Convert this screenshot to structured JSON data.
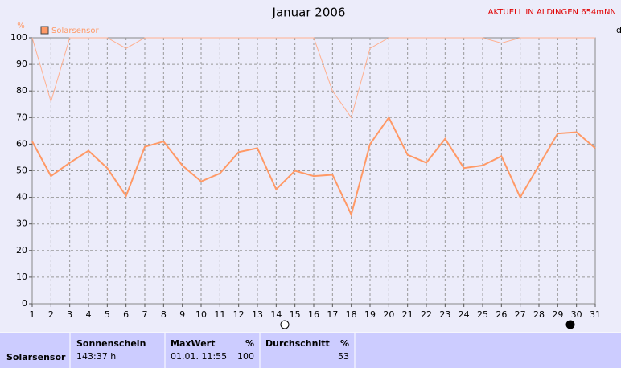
{
  "chart_data": {
    "type": "line",
    "title": "Januar 2006",
    "annotation": "AKTUELL IN ALDINGEN 654mNN",
    "ylabel": "%",
    "y2label": "d",
    "x": [
      1,
      2,
      3,
      4,
      5,
      6,
      7,
      8,
      9,
      10,
      11,
      12,
      13,
      14,
      15,
      16,
      17,
      18,
      19,
      20,
      21,
      22,
      23,
      24,
      25,
      26,
      27,
      28,
      29,
      30,
      31
    ],
    "xlim": [
      1,
      31
    ],
    "xticks": [
      1,
      2,
      3,
      4,
      5,
      6,
      7,
      8,
      9,
      10,
      11,
      12,
      13,
      14,
      15,
      16,
      17,
      18,
      19,
      20,
      21,
      22,
      23,
      24,
      25,
      26,
      27,
      28,
      29,
      30,
      31
    ],
    "ylim": [
      0,
      100
    ],
    "yticks": [
      0,
      10,
      20,
      30,
      40,
      50,
      60,
      70,
      80,
      90,
      100
    ],
    "grid": true,
    "series": [
      {
        "color": "#ffb090",
        "width": 1,
        "values": [
          100,
          76,
          100,
          100,
          100,
          96,
          100,
          100,
          100,
          100,
          100,
          100,
          100,
          100,
          100,
          100,
          80,
          70,
          96,
          100,
          100,
          100,
          100,
          100,
          100,
          98,
          100,
          100,
          100,
          100,
          100
        ]
      },
      {
        "name": "Solarsensor",
        "color": "#ff9966",
        "width": 2,
        "values": [
          61,
          48,
          53,
          57.5,
          51,
          40.5,
          59,
          61,
          52,
          46,
          49,
          57,
          58.5,
          43,
          50,
          48,
          48.5,
          33.5,
          60,
          70,
          56,
          53,
          62,
          51,
          52,
          55.5,
          40,
          52,
          64,
          64.5,
          58.5
        ]
      }
    ]
  },
  "summary_table": {
    "row_label": "Solarsensor",
    "cells": [
      {
        "header": "Sonnenschein",
        "value": "143:37 h"
      },
      {
        "header": "MaxWert",
        "unit": "%",
        "date": "01.01. 11:55",
        "value": 100
      },
      {
        "header": "Durchschnitt",
        "unit": "%",
        "value": 53
      }
    ]
  }
}
